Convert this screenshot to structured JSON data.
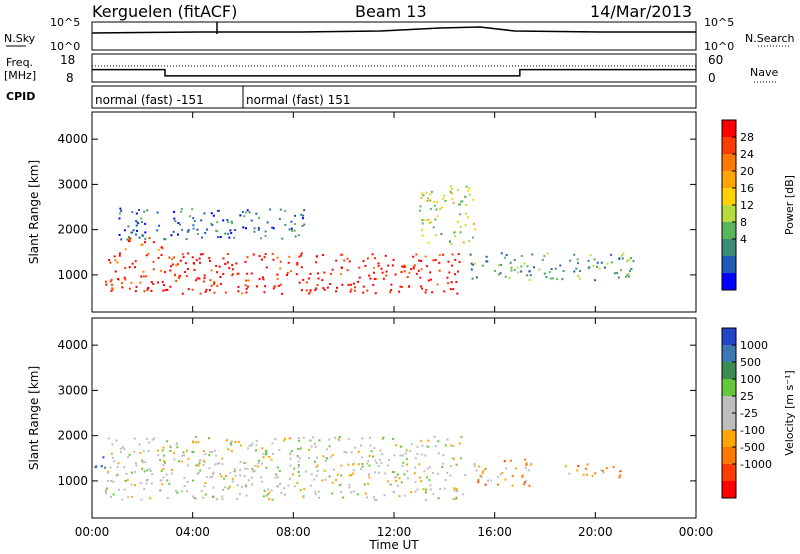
{
  "header": {
    "station": "Kerguelen (fitACF)",
    "beam": "Beam 13",
    "date": "14/Mar/2013"
  },
  "panels": {
    "nsky_label": "N.Sky",
    "nsearch_label": "N.Search",
    "freq_label_line1": "Freq.",
    "freq_label_line2": "[MHz]",
    "nave_label": "Nave",
    "cpid_label": "CPID",
    "nsky_ticks": [
      "10^5",
      "10^0"
    ],
    "nsearch_ticks": [
      "10^5",
      "10^0"
    ],
    "freq_ticks": [
      "18",
      "8"
    ],
    "nave_ticks": [
      "60",
      "0"
    ],
    "cpid_segments": [
      {
        "label": "normal (fast) -151",
        "start_hour": 0,
        "end_hour": 6.0
      },
      {
        "label": "normal (fast) 151",
        "start_hour": 6.0,
        "end_hour": 24
      }
    ],
    "freq_steps": [
      {
        "start_hour": 0,
        "end_hour": 2.9,
        "mhz": 12.4
      },
      {
        "start_hour": 2.9,
        "end_hour": 17.0,
        "mhz": 10.2
      },
      {
        "start_hour": 17.0,
        "end_hour": 24,
        "mhz": 12.4
      }
    ]
  },
  "chart_data": [
    {
      "type": "heatmap",
      "xlabel": "Time UT",
      "ylabel": "Slant Range [km]",
      "x_ticks": [
        "00:00",
        "04:00",
        "08:00",
        "12:00",
        "16:00",
        "20:00",
        "00:00"
      ],
      "xlim": [
        0,
        24
      ],
      "y_ticks": [
        "1000",
        "2000",
        "3000",
        "4000"
      ],
      "ylim": [
        180,
        4600
      ],
      "colorbar_label": "Power [dB]",
      "colorbar_ticks": [
        "28",
        "24",
        "20",
        "16",
        "12",
        "8",
        "4"
      ],
      "colorbar_colors": [
        "#ff0000",
        "#ff3c00",
        "#ff7800",
        "#ffa500",
        "#ffd200",
        "#b4dc3c",
        "#5ab45a",
        "#3c8c78",
        "#1e5ab4",
        "#0000ff"
      ],
      "regions": [
        {
          "name": "main echo band",
          "t_start": 0.5,
          "t_end": 14.8,
          "r_low": 600,
          "r_high": 1500,
          "level": 0.95
        },
        {
          "name": "upper band",
          "t_start": 1.2,
          "t_end": 2.9,
          "r_low": 1550,
          "r_high": 1850,
          "level": 0.85
        },
        {
          "name": "blue scatter",
          "t_start": 1.0,
          "t_end": 8.5,
          "r_low": 1800,
          "r_high": 2500,
          "level": 0.2
        },
        {
          "name": "green patch",
          "t_start": 13.0,
          "t_end": 15.2,
          "r_low": 1700,
          "r_high": 3000,
          "level": 0.45
        },
        {
          "name": "late blue",
          "t_start": 15.0,
          "t_end": 21.5,
          "r_low": 900,
          "r_high": 1500,
          "level": 0.3
        }
      ]
    },
    {
      "type": "heatmap",
      "xlabel": "Time UT",
      "ylabel": "Slant Range [km]",
      "x_ticks": [
        "00:00",
        "04:00",
        "08:00",
        "12:00",
        "16:00",
        "20:00",
        "00:00"
      ],
      "xlim": [
        0,
        24
      ],
      "y_ticks": [
        "1000",
        "2000",
        "3000",
        "4000"
      ],
      "ylim": [
        180,
        4600
      ],
      "colorbar_label": "Velocity [m s⁻¹]",
      "colorbar_ticks": [
        "1000",
        "500",
        "100",
        "25",
        "-25",
        "-100",
        "-500",
        "-1000"
      ],
      "colorbar_colors": [
        "#2346c8",
        "#3c78b4",
        "#3c8c50",
        "#64c83c",
        "#bebebe",
        "#bebebe",
        "#ffa500",
        "#ff7800",
        "#ff3c00",
        "#ff0000"
      ],
      "regions": [
        {
          "name": "ground scatter",
          "t_start": 0.5,
          "t_end": 14.8,
          "r_low": 600,
          "r_high": 2000,
          "level": 0.5
        },
        {
          "name": "green flow",
          "t_start": 15.0,
          "t_end": 17.5,
          "r_low": 900,
          "r_high": 1500,
          "level": 0.35
        },
        {
          "name": "late green",
          "t_start": 18.5,
          "t_end": 21.0,
          "r_low": 1100,
          "r_high": 1400,
          "level": 0.3
        },
        {
          "name": "early red",
          "t_start": 0.0,
          "t_end": 0.5,
          "r_low": 1200,
          "r_high": 1600,
          "level": 0.9
        }
      ]
    }
  ]
}
